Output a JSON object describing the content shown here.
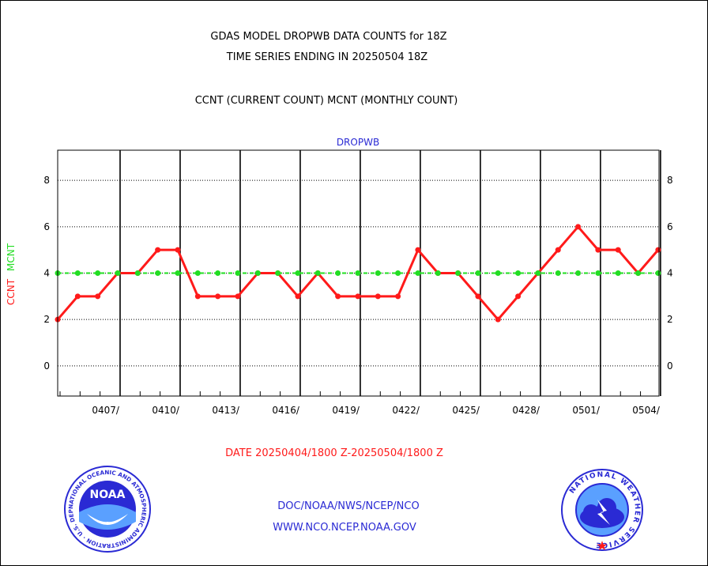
{
  "header": {
    "title_line1": "GDAS MODEL DROPWB DATA COUNTS for 18Z",
    "title_line2": "TIME SERIES ENDING IN 20250504 18Z",
    "subtitle": "CCNT (CURRENT COUNT) MCNT (MONTHLY COUNT)"
  },
  "chart_data": {
    "type": "line",
    "title": "DROPWB",
    "ylabel_current": "CCNT",
    "ylabel_monthly": "MCNT",
    "ylim": [
      -1.3,
      9.3
    ],
    "yticks": [
      "8",
      "6",
      "4",
      "2",
      "0"
    ],
    "ytick_values": [
      8,
      6,
      4,
      2,
      0
    ],
    "xlabels": [
      "0407/",
      "0410/",
      "0413/",
      "0416/",
      "0419/",
      "0422/",
      "0425/",
      "0428/",
      "0501/",
      "0504/"
    ],
    "xlabel": "DATE 20250404/1800 Z-20250504/1800 Z",
    "grid": true,
    "series": [
      {
        "name": "CCNT",
        "color": "#ff1a1a",
        "values": [
          2,
          3,
          3,
          4,
          4,
          5,
          5,
          3,
          3,
          3,
          4,
          4,
          3,
          4,
          3,
          3,
          3,
          3,
          5,
          4,
          4,
          3,
          2,
          3,
          4,
          5,
          6,
          5,
          5,
          4,
          5
        ]
      },
      {
        "name": "MCNT",
        "color": "#22dd22",
        "values": [
          4,
          4,
          4,
          4,
          4,
          4,
          4,
          4,
          4,
          4,
          4,
          4,
          4,
          4,
          4,
          4,
          4,
          4,
          4,
          4,
          4,
          4,
          4,
          4,
          4,
          4,
          4,
          4,
          4,
          4,
          4
        ]
      }
    ]
  },
  "footer": {
    "agency_line1": "DOC/NOAA/NWS/NCEP/NCO",
    "agency_line2": "WWW.NCO.NCEP.NOAA.GOV",
    "noaa_logo_text": "NOAA",
    "noaa_ring_text": "NATIONAL OCEANIC AND ATMOSPHERIC ADMINISTRATION · U.S. DEPARTMENT OF COMMERCE",
    "nws_ring_text": "NATIONAL WEATHER SERVICE"
  }
}
